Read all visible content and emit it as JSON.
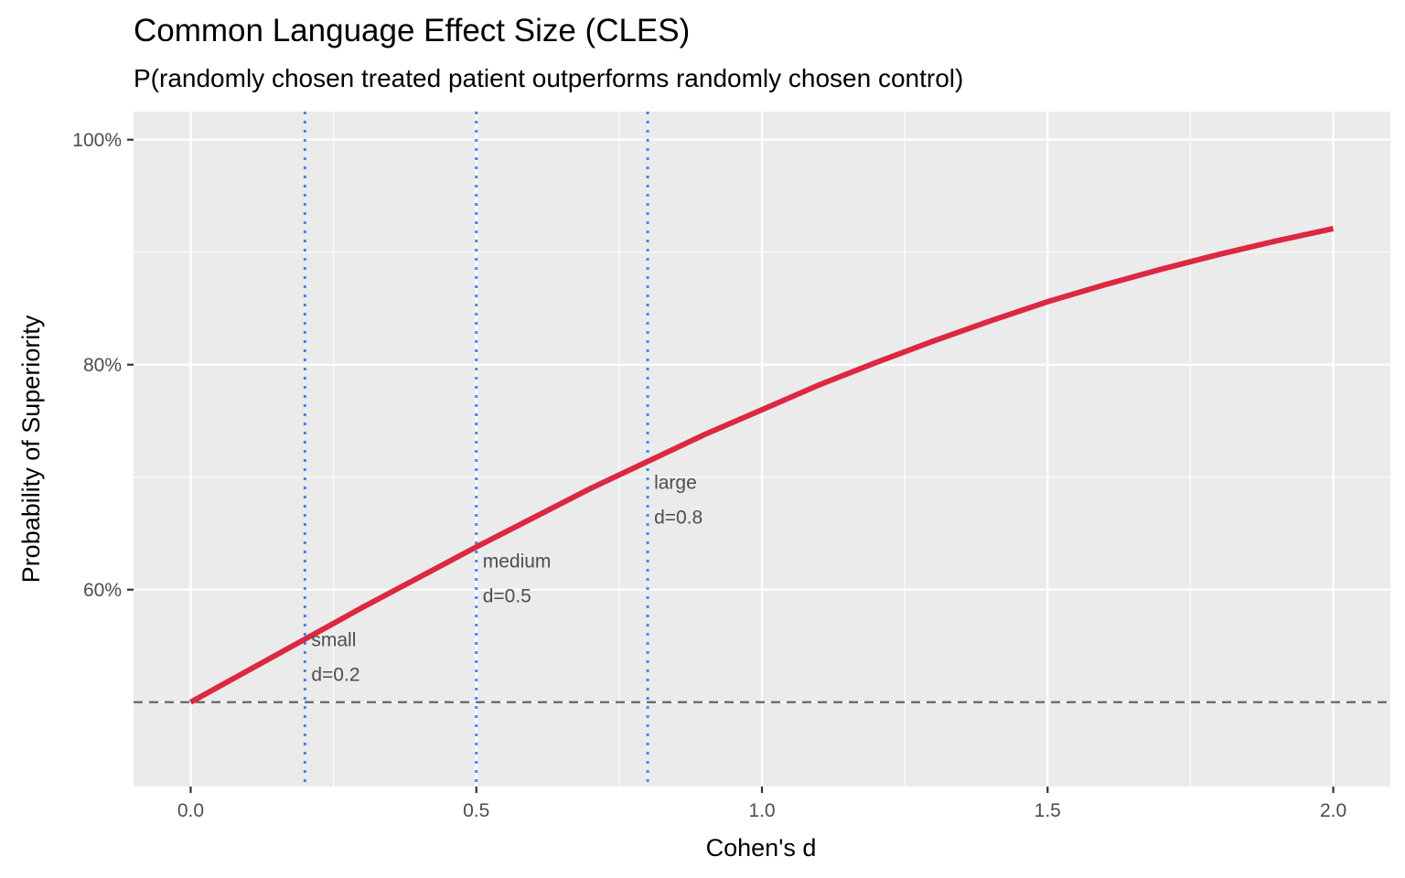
{
  "chart_data": {
    "type": "line",
    "title": "Common Language Effect Size (CLES)",
    "subtitle": "P(randomly chosen treated patient outperforms randomly chosen control)",
    "xlabel": "Cohen's d",
    "ylabel": "Probability of Superiority",
    "xlim": [
      -0.1,
      2.1
    ],
    "ylim": [
      0.425,
      1.025
    ],
    "x_ticks": [
      {
        "value": 0.0,
        "label": "0.0"
      },
      {
        "value": 0.5,
        "label": "0.5"
      },
      {
        "value": 1.0,
        "label": "1.0"
      },
      {
        "value": 1.5,
        "label": "1.5"
      },
      {
        "value": 2.0,
        "label": "2.0"
      }
    ],
    "y_ticks": [
      {
        "value": 0.6,
        "label": "60%"
      },
      {
        "value": 0.8,
        "label": "80%"
      },
      {
        "value": 1.0,
        "label": "100%"
      }
    ],
    "grid": true,
    "series": [
      {
        "color": "#dc2841",
        "x": [
          0.0,
          0.1,
          0.2,
          0.3,
          0.4,
          0.5,
          0.6,
          0.7,
          0.8,
          0.9,
          1.0,
          1.1,
          1.2,
          1.3,
          1.4,
          1.5,
          1.6,
          1.7,
          1.8,
          1.9,
          2.0
        ],
        "y": [
          0.5,
          0.528,
          0.556,
          0.584,
          0.611,
          0.638,
          0.664,
          0.69,
          0.714,
          0.738,
          0.76,
          0.782,
          0.802,
          0.821,
          0.839,
          0.856,
          0.871,
          0.885,
          0.898,
          0.91,
          0.921
        ]
      }
    ],
    "reference_lines": [
      {
        "orientation": "horizontal",
        "value": 0.5,
        "style": "dashed",
        "color": "#666666"
      },
      {
        "orientation": "vertical",
        "value": 0.2,
        "style": "dotted",
        "color": "#4285f4"
      },
      {
        "orientation": "vertical",
        "value": 0.5,
        "style": "dotted",
        "color": "#4285f4"
      },
      {
        "orientation": "vertical",
        "value": 0.8,
        "style": "dotted",
        "color": "#4285f4"
      }
    ],
    "annotations": [
      {
        "x": 0.2,
        "y": 0.54,
        "lines": [
          "small",
          "d=0.2"
        ]
      },
      {
        "x": 0.5,
        "y": 0.61,
        "lines": [
          "medium",
          "d=0.5"
        ]
      },
      {
        "x": 0.8,
        "y": 0.68,
        "lines": [
          "large",
          "d=0.8"
        ]
      }
    ]
  }
}
